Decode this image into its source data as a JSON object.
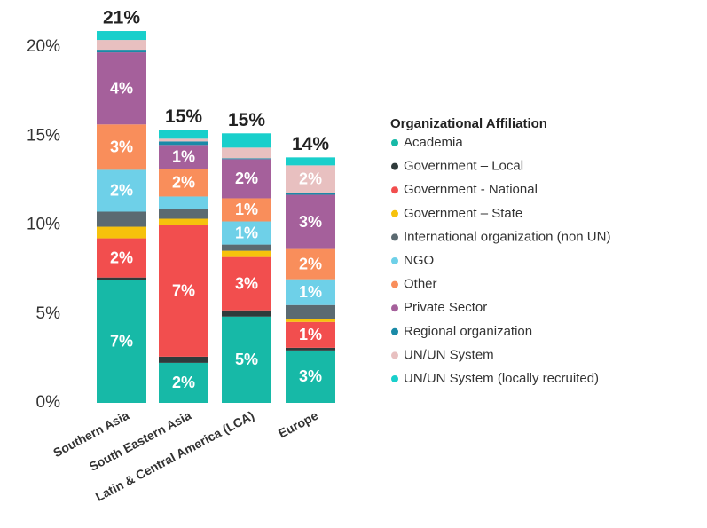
{
  "chart_data": {
    "type": "stacked_bar",
    "categories": [
      "Southern Asia",
      "South Eastern Asia",
      "Latin & Central America (LCA)",
      "Europe"
    ],
    "total_labels": [
      "21%",
      "15%",
      "15%",
      "14%"
    ],
    "ylim": [
      0,
      21.5
    ],
    "yticks": [
      {
        "value": 0,
        "label": "0%"
      },
      {
        "value": 5,
        "label": "5%"
      },
      {
        "value": 10,
        "label": "10%"
      },
      {
        "value": 15,
        "label": "15%"
      },
      {
        "value": 20,
        "label": "20%"
      }
    ],
    "legend_title": "Organizational Affiliation",
    "legend": "right",
    "series": [
      {
        "name": "Academia",
        "color": "#17b9a7",
        "values": [
          6.9,
          2.25,
          4.85,
          2.95
        ],
        "value_labels": [
          "7%",
          "2%",
          "5%",
          "3%"
        ]
      },
      {
        "name": "Government – Local",
        "color": "#2f3b3b",
        "values": [
          0.15,
          0.35,
          0.35,
          0.15
        ]
      },
      {
        "name": "Government - National",
        "color": "#f24e4e",
        "values": [
          2.2,
          7.4,
          3.0,
          1.45
        ],
        "value_labels": [
          "2%",
          "7%",
          "3%",
          "1%"
        ]
      },
      {
        "name": "Government – State",
        "color": "#f6c20c",
        "values": [
          0.65,
          0.35,
          0.35,
          0.15
        ]
      },
      {
        "name": "International organization (non UN)",
        "color": "#5b6a71",
        "values": [
          0.85,
          0.55,
          0.35,
          0.8
        ]
      },
      {
        "name": "NGO",
        "color": "#6ed0e8",
        "values": [
          2.35,
          0.7,
          1.3,
          1.45
        ],
        "value_labels": [
          "2%",
          null,
          "1%",
          "1%"
        ]
      },
      {
        "name": "Other",
        "color": "#f98e5b",
        "values": [
          2.55,
          1.55,
          1.3,
          1.7
        ],
        "value_labels": [
          "3%",
          "2%",
          "1%",
          "2%"
        ]
      },
      {
        "name": "Private Sector",
        "color": "#a5609b",
        "values": [
          4.05,
          1.35,
          2.2,
          3.05
        ],
        "value_labels": [
          "4%",
          "1%",
          "2%",
          "3%"
        ]
      },
      {
        "name": "Regional organization",
        "color": "#1a8aa7",
        "values": [
          0.15,
          0.2,
          0.05,
          0.1
        ]
      },
      {
        "name": "UN/UN  System",
        "color": "#e8c0c0",
        "values": [
          0.55,
          0.15,
          0.6,
          1.55
        ],
        "value_labels": [
          null,
          null,
          null,
          "2%"
        ]
      },
      {
        "name": "UN/UN  System (locally recruited)",
        "color": "#19cfcb",
        "values": [
          0.5,
          0.5,
          0.8,
          0.45
        ]
      }
    ]
  }
}
